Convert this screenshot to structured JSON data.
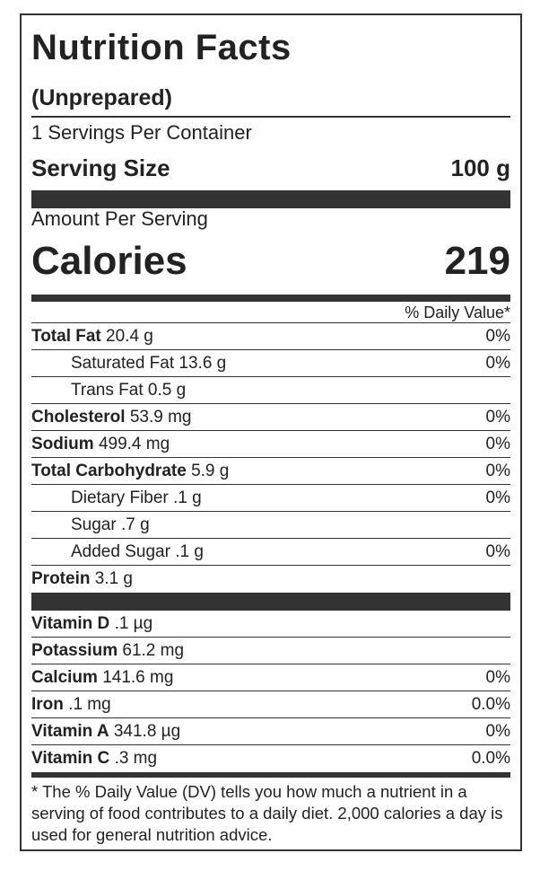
{
  "title": "Nutrition Facts",
  "subtitle": "(Unprepared)",
  "servings": "1 Servings Per Container",
  "serving_size": {
    "label": "Serving Size",
    "value": "100 g"
  },
  "amount_per_serving": "Amount Per Serving",
  "calories": {
    "label": "Calories",
    "value": 219
  },
  "dv_header": "% Daily Value*",
  "nutrients": [
    {
      "name": "Total Fat",
      "amount": "20.4 g",
      "dv": "0%"
    },
    {
      "name": "Saturated Fat",
      "amount": "13.6 g",
      "dv": "0%",
      "indent": true
    },
    {
      "name": "Trans Fat",
      "amount": "0.5 g",
      "indent": true
    },
    {
      "name": "Cholesterol",
      "amount": "53.9 mg",
      "dv": "0%"
    },
    {
      "name": "Sodium",
      "amount": "499.4 mg",
      "dv": "0%"
    },
    {
      "name": "Total Carbohydrate",
      "amount": "5.9 g",
      "dv": "0%"
    },
    {
      "name": "Dietary Fiber",
      "amount": ".1 g",
      "dv": "0%",
      "indent": true
    },
    {
      "name": "Sugar",
      "amount": ".7 g",
      "indent": true
    },
    {
      "name": "Added Sugar",
      "amount": ".1 g",
      "dv": "0%",
      "indent": true
    },
    {
      "name": "Protein",
      "amount": "3.1 g"
    }
  ],
  "vitamins": [
    {
      "name": "Vitamin D",
      "amount": ".1 µg"
    },
    {
      "name": "Potassium",
      "amount": "61.2 mg"
    },
    {
      "name": "Calcium",
      "amount": "141.6 mg",
      "dv": "0%"
    },
    {
      "name": "Iron",
      "amount": ".1 mg",
      "dv": "0.0%"
    },
    {
      "name": "Vitamin A",
      "amount": "341.8 µg",
      "dv": "0%"
    },
    {
      "name": "Vitamin C",
      "amount": ".3 mg",
      "dv": "0.0%"
    }
  ],
  "footnote": "* The % Daily Value (DV) tells you how much a nutrient in a serving of food contributes to a daily diet. 2,000 calories a day is used for general nutrition advice."
}
